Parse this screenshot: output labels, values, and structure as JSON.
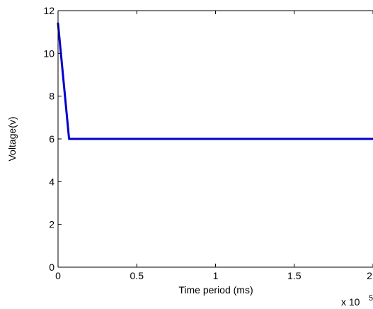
{
  "chart_data": {
    "type": "line",
    "title": "",
    "xlabel": "Time period (ms)",
    "ylabel": "Voltage(v)",
    "xlim": [
      0,
      200000
    ],
    "ylim": [
      0,
      12
    ],
    "x_exponent_label": {
      "base": "x 10",
      "exponent": "5"
    },
    "xticks": [
      0,
      50000,
      100000,
      150000,
      200000
    ],
    "xtick_labels": [
      "0",
      "0.5",
      "1",
      "1.5",
      "2"
    ],
    "yticks": [
      0,
      2,
      4,
      6,
      8,
      10,
      12
    ],
    "ytick_labels": [
      "0",
      "2",
      "4",
      "6",
      "8",
      "10",
      "12"
    ],
    "grid": false,
    "series": [
      {
        "color": "#0000cc",
        "x": [
          0,
          7000,
          7500,
          200000
        ],
        "y": [
          11.4,
          6.0,
          6.0,
          6.0
        ]
      }
    ]
  }
}
